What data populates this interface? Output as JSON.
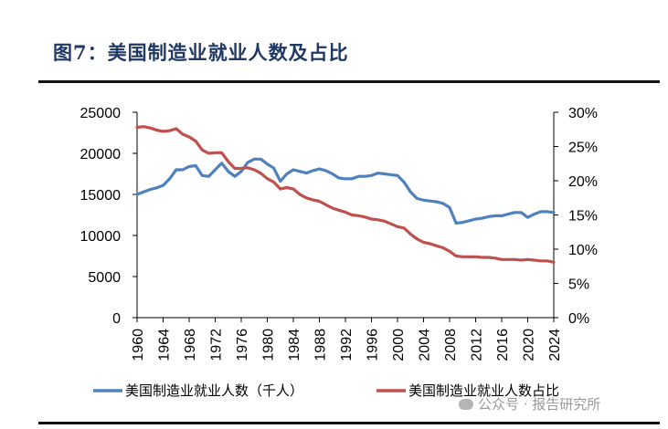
{
  "title": "图7：美国制造业就业人数及占比",
  "watermark": "公众号 · 报告研究所",
  "chart_data": {
    "type": "line",
    "x": [
      1960,
      1961,
      1962,
      1963,
      1964,
      1965,
      1966,
      1967,
      1968,
      1969,
      1970,
      1971,
      1972,
      1973,
      1974,
      1975,
      1976,
      1977,
      1978,
      1979,
      1980,
      1981,
      1982,
      1983,
      1984,
      1985,
      1986,
      1987,
      1988,
      1989,
      1990,
      1991,
      1992,
      1993,
      1994,
      1995,
      1996,
      1997,
      1998,
      1999,
      2000,
      2001,
      2002,
      2003,
      2004,
      2005,
      2006,
      2007,
      2008,
      2009,
      2010,
      2011,
      2012,
      2013,
      2014,
      2015,
      2016,
      2017,
      2018,
      2019,
      2020,
      2021,
      2022,
      2023,
      2024
    ],
    "x_ticks": [
      "1960",
      "1964",
      "1968",
      "1972",
      "1976",
      "1980",
      "1984",
      "1988",
      "1992",
      "1996",
      "2000",
      "2004",
      "2008",
      "2012",
      "2016",
      "2020",
      "2024"
    ],
    "y_left": {
      "min": 0,
      "max": 25000,
      "ticks": [
        "0",
        "5000",
        "10000",
        "15000",
        "20000",
        "25000"
      ]
    },
    "y_right": {
      "min": 0,
      "max": 0.3,
      "ticks": [
        "0%",
        "5%",
        "10%",
        "15%",
        "20%",
        "25%",
        "30%"
      ]
    },
    "series": [
      {
        "name": "美国制造业就业人数（千人）",
        "axis": "left",
        "color": "#4F81BD",
        "values": [
          15000,
          15300,
          15600,
          15800,
          16100,
          16900,
          18000,
          18000,
          18400,
          18500,
          17300,
          17200,
          18000,
          18800,
          17800,
          17200,
          17800,
          18900,
          19300,
          19300,
          18700,
          18200,
          16600,
          17500,
          18000,
          17800,
          17600,
          17900,
          18100,
          17900,
          17500,
          17000,
          16900,
          16900,
          17200,
          17200,
          17300,
          17600,
          17500,
          17400,
          17300,
          16500,
          15300,
          14500,
          14300,
          14200,
          14100,
          13900,
          13400,
          11500,
          11600,
          11800,
          12000,
          12100,
          12300,
          12400,
          12400,
          12600,
          12800,
          12800,
          12200,
          12600,
          12900,
          12900,
          12800
        ]
      },
      {
        "name": "美国制造业就业人数占比",
        "axis": "right",
        "color": "#C0504D",
        "values": [
          0.278,
          0.279,
          0.277,
          0.274,
          0.272,
          0.273,
          0.276,
          0.268,
          0.264,
          0.258,
          0.245,
          0.24,
          0.241,
          0.241,
          0.228,
          0.218,
          0.218,
          0.219,
          0.216,
          0.211,
          0.203,
          0.198,
          0.188,
          0.19,
          0.188,
          0.18,
          0.175,
          0.172,
          0.17,
          0.165,
          0.16,
          0.157,
          0.154,
          0.15,
          0.149,
          0.147,
          0.144,
          0.143,
          0.141,
          0.137,
          0.133,
          0.131,
          0.122,
          0.115,
          0.11,
          0.108,
          0.105,
          0.102,
          0.097,
          0.09,
          0.089,
          0.089,
          0.089,
          0.088,
          0.088,
          0.087,
          0.085,
          0.085,
          0.085,
          0.084,
          0.085,
          0.084,
          0.083,
          0.083,
          0.081
        ]
      }
    ]
  }
}
